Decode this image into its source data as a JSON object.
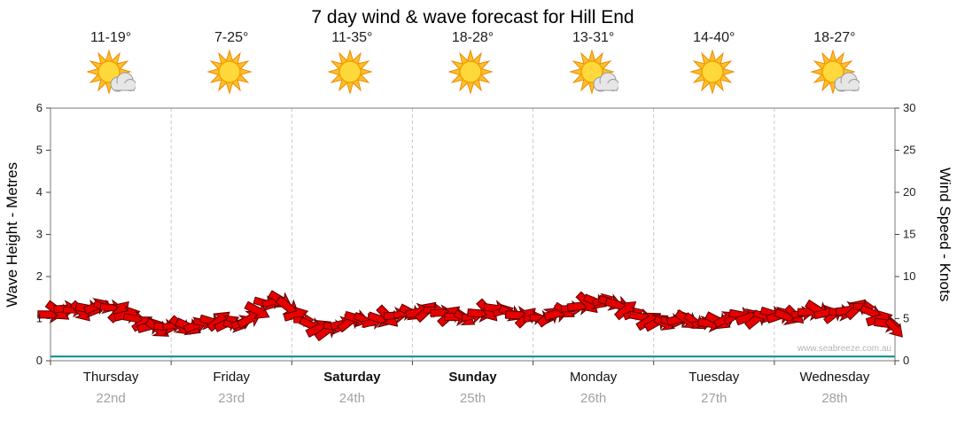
{
  "title": "7 day wind & wave forecast for Hill End",
  "watermark": "www.seabreeze.com.au",
  "days": [
    {
      "name": "Thursday",
      "date": "22nd",
      "temp": "11-19°",
      "icon": "sun-cloud",
      "weekend": false
    },
    {
      "name": "Friday",
      "date": "23rd",
      "temp": "7-25°",
      "icon": "sun",
      "weekend": false
    },
    {
      "name": "Saturday",
      "date": "24th",
      "temp": "11-35°",
      "icon": "sun",
      "weekend": true
    },
    {
      "name": "Sunday",
      "date": "25th",
      "temp": "18-28°",
      "icon": "sun",
      "weekend": true
    },
    {
      "name": "Monday",
      "date": "26th",
      "temp": "13-31°",
      "icon": "sun-cloud",
      "weekend": false
    },
    {
      "name": "Tuesday",
      "date": "27th",
      "temp": "14-40°",
      "icon": "sun",
      "weekend": false
    },
    {
      "name": "Wednesday",
      "date": "28th",
      "temp": "18-27°",
      "icon": "sun-cloud",
      "weekend": false
    }
  ],
  "chart_data": {
    "type": "line",
    "title": "7 day wind & wave forecast for Hill End",
    "x_days": [
      "Thursday 22nd",
      "Friday 23rd",
      "Saturday 24th",
      "Sunday 25th",
      "Monday 26th",
      "Tuesday 27th",
      "Wednesday 28th"
    ],
    "y_left": {
      "label": "Wave Height - Metres",
      "min": 0,
      "max": 6,
      "tick_step": 1
    },
    "y_right": {
      "label": "Wind Speed - Knots",
      "min": 0,
      "max": 30,
      "tick_step": 5
    },
    "grid": "vertical dashed lines at day boundaries",
    "series": [
      {
        "name": "Wind Speed",
        "unit": "knots",
        "axis": "right",
        "style": "wind-arrows",
        "color": "#e60000",
        "points_per_day": 8,
        "values": [
          5.5,
          6.2,
          5.8,
          6.5,
          6.3,
          5.5,
          4.5,
          3.8,
          4.2,
          4.0,
          4.5,
          4.8,
          4.2,
          5.0,
          6.8,
          7.2,
          5.5,
          4.2,
          3.6,
          4.4,
          5.0,
          4.6,
          5.2,
          5.6,
          5.8,
          6.0,
          5.4,
          5.0,
          5.6,
          6.2,
          5.6,
          5.2,
          5.0,
          5.6,
          6.2,
          6.8,
          7.2,
          6.6,
          5.6,
          4.8,
          4.4,
          5.0,
          4.6,
          4.4,
          5.0,
          5.4,
          5.0,
          5.6,
          5.2,
          5.6,
          6.0,
          5.4,
          6.0,
          6.4,
          5.0,
          3.8
        ]
      },
      {
        "name": "Wave Height",
        "unit": "metres",
        "axis": "left",
        "style": "line",
        "color": "#008b8b",
        "values": [
          0.1,
          0.1,
          0.1,
          0.1,
          0.1,
          0.1,
          0.1
        ]
      }
    ]
  }
}
